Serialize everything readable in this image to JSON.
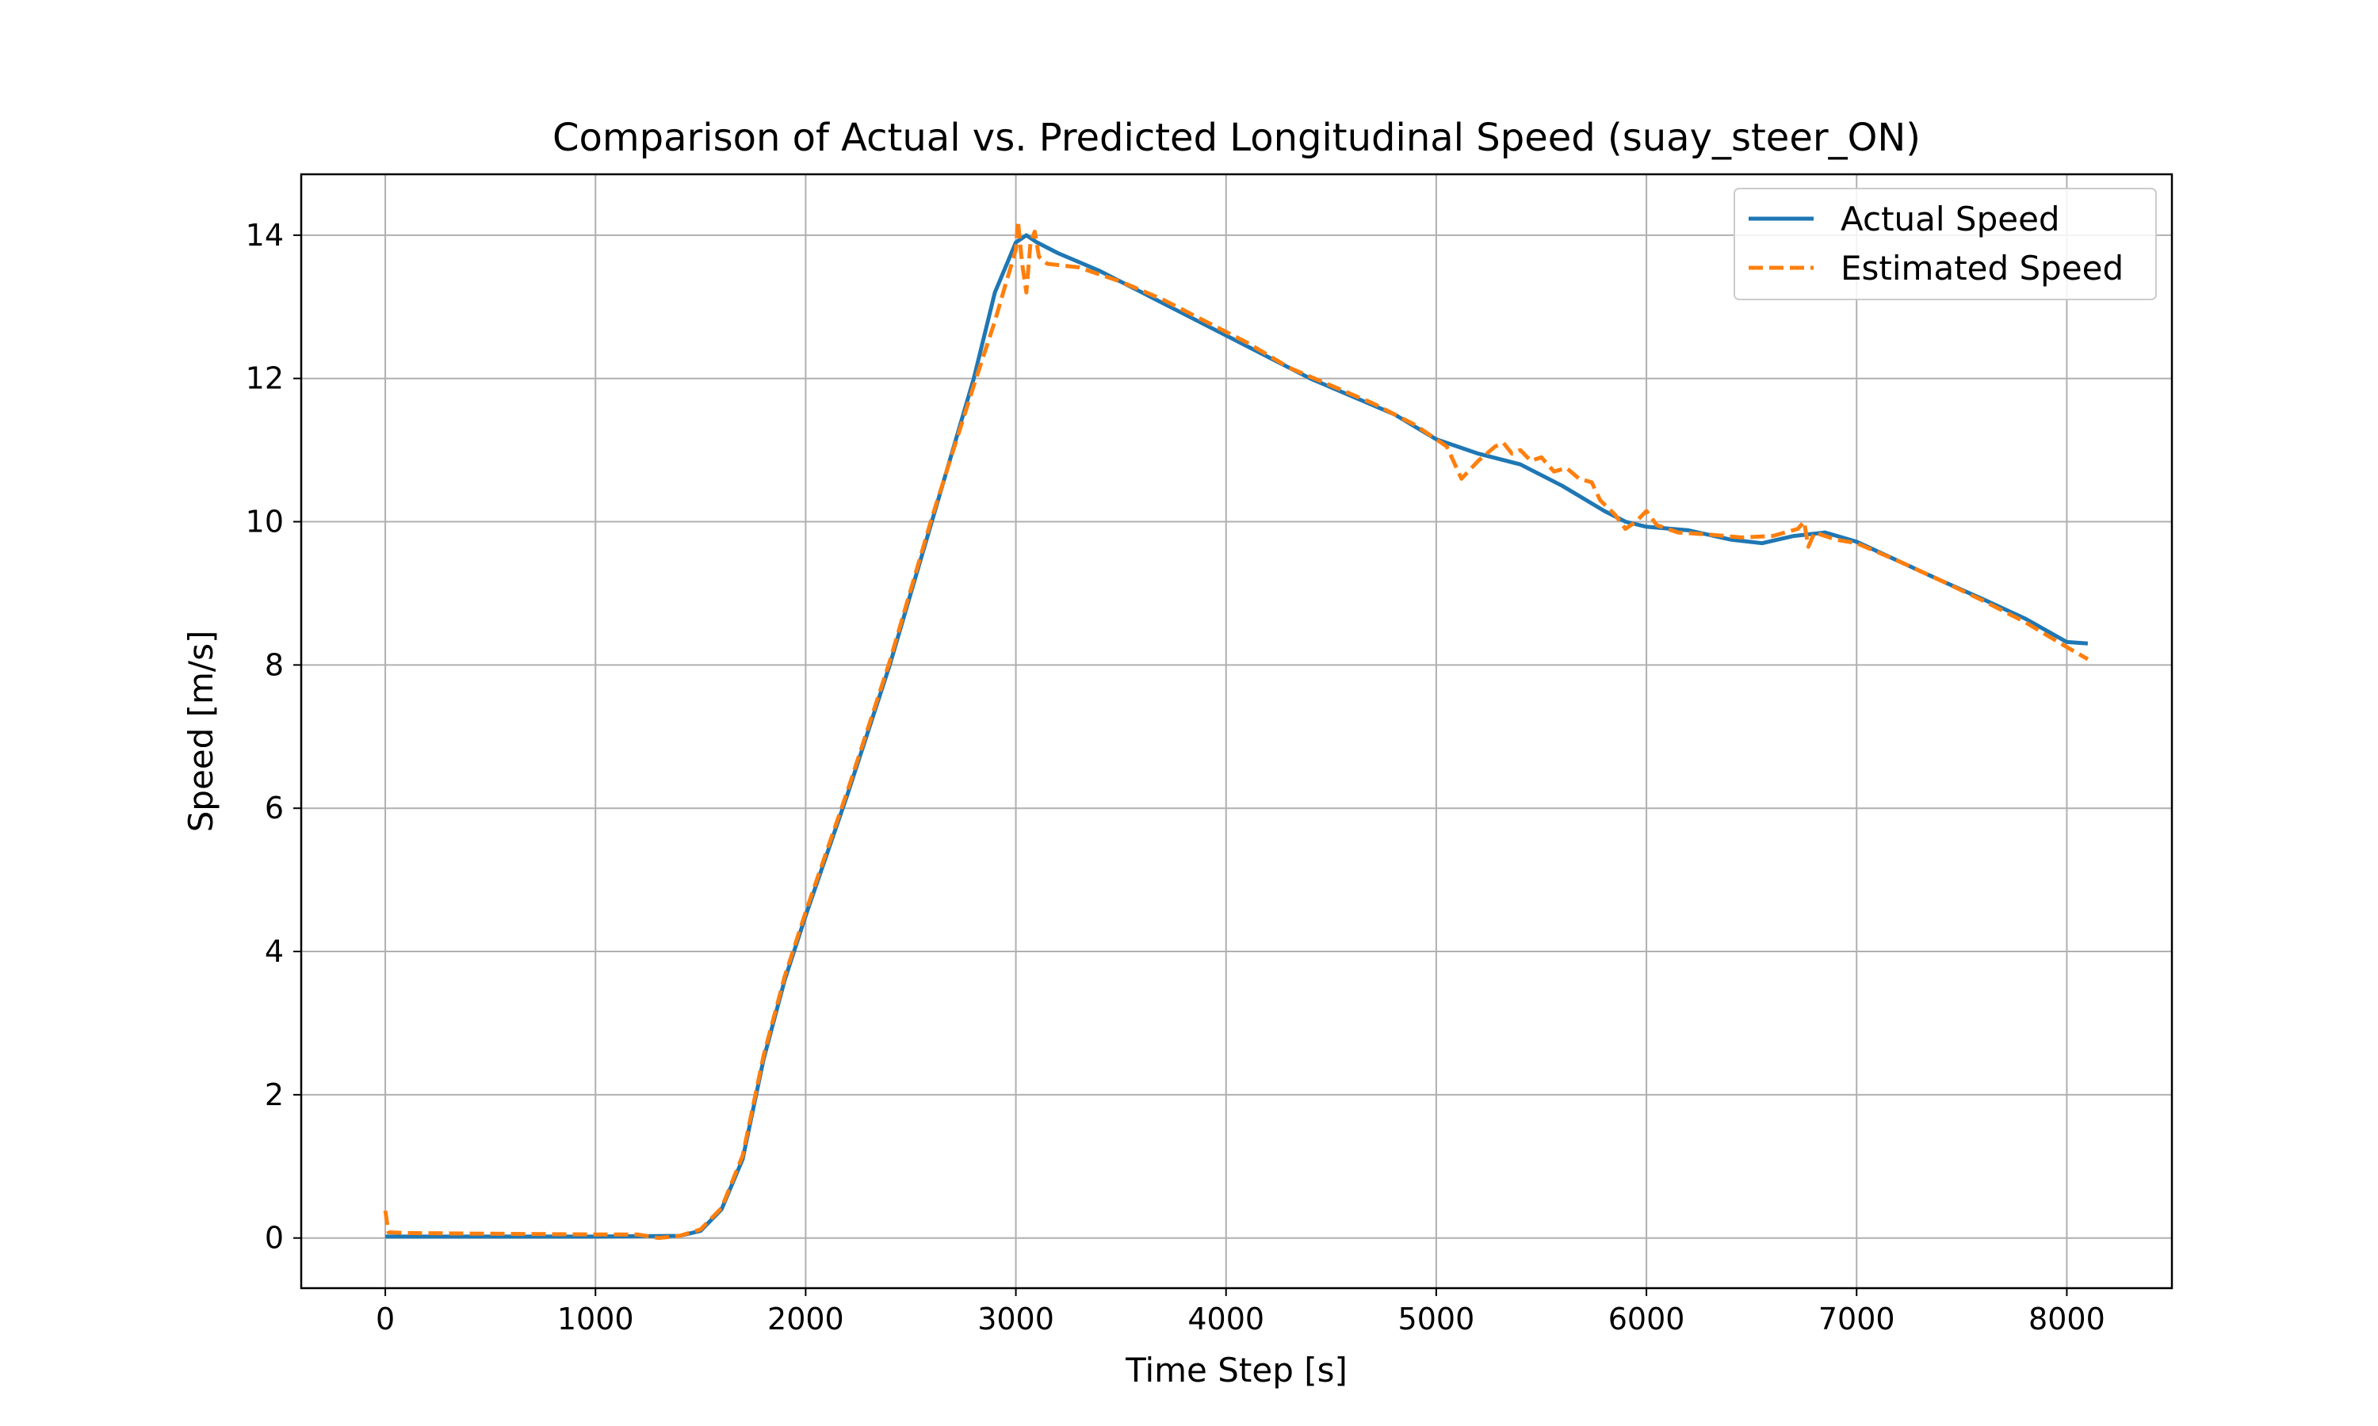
{
  "chart_data": {
    "type": "line",
    "title": "Comparison of Actual vs. Predicted Longitudinal Speed (suay_steer_ON)",
    "xlabel": "Time Step [s]",
    "ylabel": "Speed [m/s]",
    "xlim": [
      -400,
      8500
    ],
    "ylim": [
      -0.7,
      14.85
    ],
    "xticks": [
      0,
      1000,
      2000,
      3000,
      4000,
      5000,
      6000,
      7000,
      8000
    ],
    "yticks": [
      0,
      2,
      4,
      6,
      8,
      10,
      12,
      14
    ],
    "grid": true,
    "legend_position": "top-right",
    "series": [
      {
        "name": "Actual Speed",
        "color": "#1f77b4",
        "style": "solid",
        "points": [
          [
            0,
            0.02
          ],
          [
            500,
            0.02
          ],
          [
            1000,
            0.02
          ],
          [
            1400,
            0.03
          ],
          [
            1500,
            0.1
          ],
          [
            1600,
            0.4
          ],
          [
            1700,
            1.1
          ],
          [
            1800,
            2.5
          ],
          [
            1900,
            3.6
          ],
          [
            2000,
            4.5
          ],
          [
            2200,
            6.2
          ],
          [
            2400,
            8.0
          ],
          [
            2600,
            10.0
          ],
          [
            2800,
            12.0
          ],
          [
            2900,
            13.2
          ],
          [
            3000,
            13.9
          ],
          [
            3050,
            14.0
          ],
          [
            3100,
            13.9
          ],
          [
            3200,
            13.75
          ],
          [
            3400,
            13.5
          ],
          [
            3600,
            13.2
          ],
          [
            3800,
            12.9
          ],
          [
            4000,
            12.6
          ],
          [
            4200,
            12.3
          ],
          [
            4400,
            12.0
          ],
          [
            4600,
            11.75
          ],
          [
            4800,
            11.5
          ],
          [
            5000,
            11.15
          ],
          [
            5200,
            10.95
          ],
          [
            5400,
            10.8
          ],
          [
            5600,
            10.5
          ],
          [
            5800,
            10.15
          ],
          [
            5900,
            10.0
          ],
          [
            6000,
            9.93
          ],
          [
            6200,
            9.88
          ],
          [
            6400,
            9.75
          ],
          [
            6550,
            9.7
          ],
          [
            6700,
            9.8
          ],
          [
            6850,
            9.85
          ],
          [
            7000,
            9.72
          ],
          [
            7200,
            9.45
          ],
          [
            7400,
            9.18
          ],
          [
            7600,
            8.92
          ],
          [
            7800,
            8.65
          ],
          [
            8000,
            8.32
          ],
          [
            8100,
            8.3
          ]
        ]
      },
      {
        "name": "Estimated Speed",
        "color": "#ff7f0e",
        "style": "dashed",
        "points": [
          [
            0,
            0.38
          ],
          [
            15,
            0.08
          ],
          [
            100,
            0.07
          ],
          [
            500,
            0.06
          ],
          [
            1000,
            0.05
          ],
          [
            1200,
            0.05
          ],
          [
            1300,
            0.0
          ],
          [
            1400,
            0.03
          ],
          [
            1500,
            0.12
          ],
          [
            1600,
            0.42
          ],
          [
            1700,
            1.15
          ],
          [
            1800,
            2.55
          ],
          [
            1900,
            3.65
          ],
          [
            2000,
            4.55
          ],
          [
            2200,
            6.25
          ],
          [
            2400,
            8.05
          ],
          [
            2600,
            10.05
          ],
          [
            2800,
            11.9
          ],
          [
            2900,
            12.8
          ],
          [
            2950,
            13.3
          ],
          [
            3000,
            13.8
          ],
          [
            3010,
            14.2
          ],
          [
            3030,
            13.6
          ],
          [
            3050,
            13.2
          ],
          [
            3070,
            13.9
          ],
          [
            3090,
            14.05
          ],
          [
            3110,
            13.7
          ],
          [
            3150,
            13.6
          ],
          [
            3300,
            13.55
          ],
          [
            3500,
            13.35
          ],
          [
            3700,
            13.1
          ],
          [
            3900,
            12.8
          ],
          [
            4100,
            12.5
          ],
          [
            4300,
            12.15
          ],
          [
            4500,
            11.9
          ],
          [
            4700,
            11.65
          ],
          [
            4900,
            11.35
          ],
          [
            5050,
            11.05
          ],
          [
            5120,
            10.6
          ],
          [
            5200,
            10.85
          ],
          [
            5280,
            11.05
          ],
          [
            5320,
            11.1
          ],
          [
            5360,
            10.95
          ],
          [
            5400,
            11.0
          ],
          [
            5450,
            10.85
          ],
          [
            5500,
            10.9
          ],
          [
            5560,
            10.7
          ],
          [
            5620,
            10.75
          ],
          [
            5680,
            10.6
          ],
          [
            5740,
            10.55
          ],
          [
            5780,
            10.3
          ],
          [
            5850,
            10.1
          ],
          [
            5900,
            9.9
          ],
          [
            5950,
            10.0
          ],
          [
            6000,
            10.15
          ],
          [
            6050,
            9.95
          ],
          [
            6150,
            9.85
          ],
          [
            6300,
            9.82
          ],
          [
            6450,
            9.78
          ],
          [
            6600,
            9.8
          ],
          [
            6720,
            9.9
          ],
          [
            6750,
            10.0
          ],
          [
            6770,
            9.65
          ],
          [
            6800,
            9.85
          ],
          [
            6850,
            9.8
          ],
          [
            6900,
            9.75
          ],
          [
            7000,
            9.7
          ],
          [
            7200,
            9.45
          ],
          [
            7400,
            9.18
          ],
          [
            7600,
            8.9
          ],
          [
            7800,
            8.6
          ],
          [
            8000,
            8.25
          ],
          [
            8100,
            8.08
          ]
        ]
      }
    ]
  }
}
